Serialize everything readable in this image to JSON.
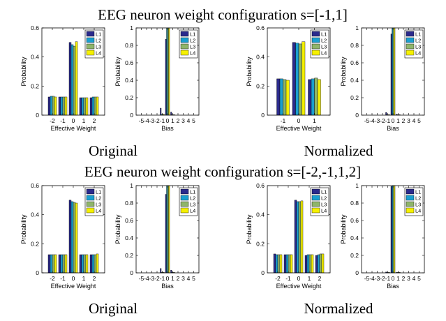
{
  "figure": {
    "row_titles": [
      "EEG neuron weight configuration s=[-1,1]",
      "EEG neuron weight configuration s=[-2,-1,1,2]"
    ],
    "captions": [
      "Original",
      "Normalized",
      "Original",
      "Normalized"
    ]
  },
  "colors": {
    "L1": "#2b2a8c",
    "L2": "#1a9fd0",
    "L3": "#8fb56a",
    "L4": "#f5f000"
  },
  "chart_data": [
    {
      "id": "r1-original-weight",
      "type": "bar",
      "categories": [
        "-2",
        "-1",
        "0",
        "1",
        "2"
      ],
      "series": [
        {
          "name": "L1",
          "values": [
            0.125,
            0.125,
            0.5,
            0.12,
            0.12
          ]
        },
        {
          "name": "L2",
          "values": [
            0.13,
            0.125,
            0.485,
            0.12,
            0.125
          ]
        },
        {
          "name": "L3",
          "values": [
            0.13,
            0.125,
            0.475,
            0.12,
            0.125
          ]
        },
        {
          "name": "L4",
          "values": [
            0.125,
            0.125,
            0.505,
            0.12,
            0.125
          ]
        }
      ],
      "xlabel": "Effective Weight",
      "ylabel": "Probability",
      "ylim": [
        0,
        0.6
      ],
      "yticks": [
        "0",
        "0.2",
        "0.4",
        "0.6"
      ],
      "legend": "top-right",
      "grid": false
    },
    {
      "id": "r1-original-bias",
      "type": "bar",
      "categories": [
        "-5",
        "-4",
        "-3",
        "-2",
        "-1",
        "0",
        "1",
        "2",
        "3",
        "4",
        "5"
      ],
      "series": [
        {
          "name": "L1",
          "values": [
            0,
            0,
            0,
            0,
            0.08,
            0.87,
            0.035,
            0,
            0,
            0,
            0
          ]
        },
        {
          "name": "L2",
          "values": [
            0,
            0,
            0,
            0,
            0.01,
            1.0,
            0.005,
            0,
            0,
            0,
            0
          ]
        },
        {
          "name": "L3",
          "values": [
            0,
            0,
            0,
            0,
            0.01,
            1.0,
            0.005,
            0,
            0,
            0,
            0
          ]
        },
        {
          "name": "L4",
          "values": [
            0,
            0,
            0,
            0,
            0.01,
            1.0,
            0.005,
            0,
            0,
            0,
            0
          ]
        }
      ],
      "xlabel": "Bias",
      "ylabel": "Probability",
      "ylim": [
        0,
        1
      ],
      "yticks": [
        "0",
        "0.2",
        "0.4",
        "0.6",
        "0.8",
        "1"
      ],
      "legend": "top-right",
      "grid": false
    },
    {
      "id": "r1-normalized-weight",
      "type": "bar",
      "categories": [
        "-1",
        "0",
        "1"
      ],
      "series": [
        {
          "name": "L1",
          "values": [
            0.25,
            0.5,
            0.245
          ]
        },
        {
          "name": "L2",
          "values": [
            0.25,
            0.495,
            0.25
          ]
        },
        {
          "name": "L3",
          "values": [
            0.245,
            0.49,
            0.255
          ]
        },
        {
          "name": "L4",
          "values": [
            0.24,
            0.505,
            0.245
          ]
        }
      ],
      "xlabel": "Effective Weight",
      "ylabel": "Probability",
      "ylim": [
        0,
        0.6
      ],
      "yticks": [
        "0",
        "0.2",
        "0.4",
        "0.6"
      ],
      "legend": "top-right",
      "grid": false
    },
    {
      "id": "r1-normalized-bias",
      "type": "bar",
      "categories": [
        "-5",
        "-4",
        "-3",
        "-2",
        "-1",
        "0",
        "1",
        "2",
        "3",
        "4",
        "5"
      ],
      "series": [
        {
          "name": "L1",
          "values": [
            0,
            0,
            0,
            0,
            0.03,
            0.93,
            0.01,
            0,
            0,
            0,
            0
          ]
        },
        {
          "name": "L2",
          "values": [
            0,
            0,
            0,
            0,
            0.005,
            1.0,
            0.005,
            0,
            0,
            0,
            0
          ]
        },
        {
          "name": "L3",
          "values": [
            0,
            0,
            0,
            0,
            0.005,
            1.0,
            0.005,
            0,
            0,
            0,
            0
          ]
        },
        {
          "name": "L4",
          "values": [
            0,
            0,
            0,
            0,
            0.005,
            1.0,
            0.005,
            0,
            0,
            0,
            0
          ]
        }
      ],
      "xlabel": "Bias",
      "ylabel": "Probability",
      "ylim": [
        0,
        1
      ],
      "yticks": [
        "0",
        "0.2",
        "0.4",
        "0.6",
        "0.8",
        "1"
      ],
      "legend": "top-right",
      "grid": false
    },
    {
      "id": "r2-original-weight",
      "type": "bar",
      "categories": [
        "-2",
        "-1",
        "0",
        "1",
        "2"
      ],
      "series": [
        {
          "name": "L1",
          "values": [
            0.125,
            0.125,
            0.5,
            0.125,
            0.125
          ]
        },
        {
          "name": "L2",
          "values": [
            0.125,
            0.125,
            0.49,
            0.125,
            0.125
          ]
        },
        {
          "name": "L3",
          "values": [
            0.125,
            0.125,
            0.485,
            0.125,
            0.125
          ]
        },
        {
          "name": "L4",
          "values": [
            0.125,
            0.125,
            0.48,
            0.125,
            0.13
          ]
        }
      ],
      "xlabel": "Effective Weight",
      "ylabel": "Probability",
      "ylim": [
        0,
        0.6
      ],
      "yticks": [
        "0",
        "0.2",
        "0.4",
        "0.6"
      ],
      "legend": "top-right",
      "grid": false
    },
    {
      "id": "r2-original-bias",
      "type": "bar",
      "categories": [
        "-5",
        "-4",
        "-3",
        "-2",
        "-1",
        "0",
        "1",
        "2",
        "3",
        "4",
        "5"
      ],
      "series": [
        {
          "name": "L1",
          "values": [
            0,
            0,
            0,
            0,
            0.05,
            0.9,
            0.03,
            0,
            0,
            0,
            0
          ]
        },
        {
          "name": "L2",
          "values": [
            0,
            0,
            0,
            0,
            0.005,
            1.0,
            0.005,
            0,
            0,
            0,
            0
          ]
        },
        {
          "name": "L3",
          "values": [
            0,
            0,
            0,
            0,
            0.005,
            1.0,
            0.005,
            0,
            0,
            0,
            0
          ]
        },
        {
          "name": "L4",
          "values": [
            0,
            0,
            0,
            0,
            0.005,
            1.0,
            0.005,
            0,
            0,
            0,
            0
          ]
        }
      ],
      "xlabel": "Bias",
      "ylabel": "Probability",
      "ylim": [
        0,
        1
      ],
      "yticks": [
        "0",
        "0.2",
        "0.4",
        "0.6",
        "0.8",
        "1"
      ],
      "legend": "top-right",
      "grid": false
    },
    {
      "id": "r2-normalized-weight",
      "type": "bar",
      "categories": [
        "-2",
        "-1",
        "0",
        "1",
        "2"
      ],
      "series": [
        {
          "name": "L1",
          "values": [
            0.13,
            0.125,
            0.5,
            0.12,
            0.12
          ]
        },
        {
          "name": "L2",
          "values": [
            0.125,
            0.125,
            0.49,
            0.125,
            0.125
          ]
        },
        {
          "name": "L3",
          "values": [
            0.125,
            0.125,
            0.49,
            0.125,
            0.13
          ]
        },
        {
          "name": "L4",
          "values": [
            0.125,
            0.125,
            0.495,
            0.125,
            0.13
          ]
        }
      ],
      "xlabel": "Effective Weight",
      "ylabel": "Probability",
      "ylim": [
        0,
        0.6
      ],
      "yticks": [
        "0",
        "0.2",
        "0.4",
        "0.6"
      ],
      "legend": "top-right",
      "grid": false
    },
    {
      "id": "r2-normalized-bias",
      "type": "bar",
      "categories": [
        "-5",
        "-4",
        "-3",
        "-2",
        "-1",
        "0",
        "1",
        "2",
        "3",
        "4",
        "5"
      ],
      "series": [
        {
          "name": "L1",
          "values": [
            0,
            0,
            0,
            0,
            0.01,
            0.99,
            0.005,
            0,
            0,
            0,
            0
          ]
        },
        {
          "name": "L2",
          "values": [
            0,
            0,
            0,
            0,
            0.005,
            1.0,
            0.005,
            0,
            0,
            0,
            0
          ]
        },
        {
          "name": "L3",
          "values": [
            0,
            0,
            0,
            0,
            0.005,
            1.0,
            0.005,
            0,
            0,
            0,
            0
          ]
        },
        {
          "name": "L4",
          "values": [
            0,
            0,
            0,
            0,
            0.005,
            1.0,
            0.005,
            0,
            0,
            0,
            0
          ]
        }
      ],
      "xlabel": "Bias",
      "ylabel": "Probability",
      "ylim": [
        0,
        1
      ],
      "yticks": [
        "0",
        "0.2",
        "0.4",
        "0.6",
        "0.8",
        "1"
      ],
      "legend": "top-right",
      "grid": false
    }
  ]
}
